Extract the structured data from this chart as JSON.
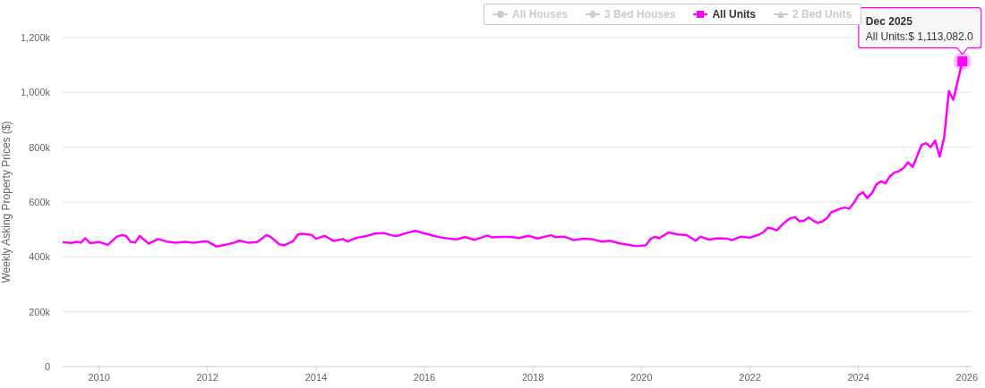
{
  "chart_data": {
    "type": "line",
    "ylabel": "Weekly Asking Property Prices ($)",
    "x": [
      "2009-05",
      "2009-07",
      "2009-08",
      "2009-09",
      "2009-10",
      "2009-11",
      "2010-01",
      "2010-03",
      "2010-05",
      "2010-06",
      "2010-07",
      "2010-08",
      "2010-09",
      "2010-10",
      "2010-12",
      "2011-02",
      "2011-04",
      "2011-06",
      "2011-08",
      "2011-10",
      "2011-12",
      "2012-01",
      "2012-03",
      "2012-05",
      "2012-07",
      "2012-08",
      "2012-10",
      "2012-12",
      "2013-02",
      "2013-03",
      "2013-05",
      "2013-06",
      "2013-08",
      "2013-09",
      "2013-10",
      "2013-12",
      "2014-01",
      "2014-03",
      "2014-05",
      "2014-07",
      "2014-08",
      "2014-10",
      "2014-12",
      "2015-02",
      "2015-04",
      "2015-06",
      "2015-07",
      "2015-09",
      "2015-11",
      "2016-01",
      "2016-03",
      "2016-05",
      "2016-08",
      "2016-10",
      "2016-12",
      "2017-03",
      "2017-04",
      "2017-06",
      "2017-08",
      "2017-10",
      "2017-12",
      "2018-02",
      "2018-05",
      "2018-06",
      "2018-08",
      "2018-10",
      "2018-12",
      "2019-02",
      "2019-04",
      "2019-06",
      "2019-08",
      "2019-10",
      "2019-12",
      "2020-02",
      "2020-03",
      "2020-04",
      "2020-05",
      "2020-07",
      "2020-09",
      "2020-11",
      "2021-01",
      "2021-02",
      "2021-04",
      "2021-06",
      "2021-08",
      "2021-09",
      "2021-11",
      "2022-01",
      "2022-03",
      "2022-04",
      "2022-05",
      "2022-06",
      "2022-07",
      "2022-08",
      "2022-09",
      "2022-10",
      "2022-11",
      "2022-12",
      "2023-01",
      "2023-02",
      "2023-03",
      "2023-04",
      "2023-05",
      "2023-06",
      "2023-07",
      "2023-08",
      "2023-09",
      "2023-10",
      "2023-11",
      "2023-12",
      "2024-01",
      "2024-02",
      "2024-03",
      "2024-04",
      "2024-05",
      "2024-06",
      "2024-07",
      "2024-08",
      "2024-09",
      "2024-10",
      "2024-11",
      "2024-12",
      "2025-01",
      "2025-02",
      "2025-03",
      "2025-04",
      "2025-05",
      "2025-06",
      "2025-07",
      "2025-08",
      "2025-09",
      "2025-10",
      "2025-11",
      "2025-12"
    ],
    "series": [
      {
        "name": "All Houses",
        "color": "#cccccc",
        "values": [
          null,
          null,
          null,
          null,
          null,
          null,
          null,
          null,
          null,
          null,
          null,
          null,
          null,
          null,
          null,
          null,
          null,
          null,
          null,
          null,
          null,
          null,
          null,
          null,
          null,
          null,
          null,
          null,
          null,
          null,
          null,
          null,
          null,
          null,
          null,
          null,
          null,
          null,
          null,
          null,
          null,
          null,
          null,
          null,
          null,
          null,
          null,
          null,
          null,
          null,
          null,
          null,
          null,
          null,
          null,
          null,
          null,
          null,
          null,
          null,
          null,
          null,
          null,
          null,
          null,
          null,
          null,
          null,
          null,
          null,
          null,
          null,
          null,
          null,
          null,
          null,
          null,
          null,
          null,
          null,
          null,
          null,
          null,
          null,
          null,
          null,
          null,
          null,
          null,
          null,
          null,
          null,
          null,
          null,
          null,
          null,
          null,
          null,
          null,
          null,
          null,
          null,
          null,
          null,
          null,
          null,
          null,
          null,
          null,
          null,
          null,
          null,
          null,
          null,
          null,
          null,
          null,
          null,
          null,
          null,
          null,
          null,
          null,
          null,
          null,
          null,
          null,
          null,
          null,
          null,
          null,
          null,
          null,
          null
        ]
      },
      {
        "name": "3 Bed Houses",
        "color": "#cccccc",
        "values": [
          null,
          null,
          null,
          null,
          null,
          null,
          null,
          null,
          null,
          null,
          null,
          null,
          null,
          null,
          null,
          null,
          null,
          null,
          null,
          null,
          null,
          null,
          null,
          null,
          null,
          null,
          null,
          null,
          null,
          null,
          null,
          null,
          null,
          null,
          null,
          null,
          null,
          null,
          null,
          null,
          null,
          null,
          null,
          null,
          null,
          null,
          null,
          null,
          null,
          null,
          null,
          null,
          null,
          null,
          null,
          null,
          null,
          null,
          null,
          null,
          null,
          null,
          null,
          null,
          null,
          null,
          null,
          null,
          null,
          null,
          null,
          null,
          null,
          null,
          null,
          null,
          null,
          null,
          null,
          null,
          null,
          null,
          null,
          null,
          null,
          null,
          null,
          null,
          null,
          null,
          null,
          null,
          null,
          null,
          null,
          null,
          null,
          null,
          null,
          null,
          null,
          null,
          null,
          null,
          null,
          null,
          null,
          null,
          null,
          null,
          null,
          null,
          null,
          null,
          null,
          null,
          null,
          null,
          null,
          null,
          null,
          null,
          null,
          null,
          null,
          null,
          null,
          null,
          null,
          null,
          null,
          null,
          null,
          null
        ]
      },
      {
        "name": "All Units",
        "color": "#ff00ff",
        "values": [
          453000,
          451000,
          455000,
          452000,
          468000,
          450000,
          454000,
          444000,
          474000,
          479000,
          477000,
          455000,
          452000,
          476000,
          448000,
          465000,
          456000,
          452000,
          455000,
          452000,
          456000,
          456000,
          438000,
          444000,
          452000,
          459000,
          452000,
          454000,
          479000,
          473000,
          445000,
          442000,
          458000,
          482000,
          484000,
          480000,
          466000,
          477000,
          458000,
          465000,
          456000,
          470000,
          475000,
          485000,
          487000,
          478000,
          476000,
          487000,
          495000,
          486000,
          477000,
          470000,
          464000,
          472000,
          462000,
          478000,
          471000,
          473000,
          473000,
          469000,
          477000,
          467000,
          479000,
          472000,
          474000,
          461000,
          466000,
          465000,
          456000,
          459000,
          450000,
          444000,
          439000,
          443000,
          465000,
          473000,
          468000,
          489000,
          482000,
          479000,
          459000,
          474000,
          463000,
          468000,
          466000,
          461000,
          474000,
          470000,
          481000,
          490000,
          506000,
          503000,
          497000,
          515000,
          530000,
          541000,
          545000,
          530000,
          532000,
          544000,
          533000,
          524000,
          528000,
          540000,
          562000,
          569000,
          576000,
          580000,
          576000,
          597000,
          625000,
          636000,
          614000,
          632000,
          664000,
          676000,
          668000,
          694000,
          708000,
          713000,
          725000,
          745000,
          728000,
          770000,
          808000,
          815000,
          800000,
          824000,
          766000,
          837000,
          1005000,
          973000,
          1044000,
          1113082
        ]
      },
      {
        "name": "2 Bed Units",
        "color": "#cccccc",
        "values": [
          null,
          null,
          null,
          null,
          null,
          null,
          null,
          null,
          null,
          null,
          null,
          null,
          null,
          null,
          null,
          null,
          null,
          null,
          null,
          null,
          null,
          null,
          null,
          null,
          null,
          null,
          null,
          null,
          null,
          null,
          null,
          null,
          null,
          null,
          null,
          null,
          null,
          null,
          null,
          null,
          null,
          null,
          null,
          null,
          null,
          null,
          null,
          null,
          null,
          null,
          null,
          null,
          null,
          null,
          null,
          null,
          null,
          null,
          null,
          null,
          null,
          null,
          null,
          null,
          null,
          null,
          null,
          null,
          null,
          null,
          null,
          null,
          null,
          null,
          null,
          null,
          null,
          null,
          null,
          null,
          null,
          null,
          null,
          null,
          null,
          null,
          null,
          null,
          null,
          null,
          null,
          null,
          null,
          null,
          null,
          null,
          null,
          null,
          null,
          null,
          null,
          null,
          null,
          null,
          null,
          null,
          null,
          null,
          null,
          null,
          null,
          null,
          null,
          null,
          null,
          null,
          null,
          null,
          null,
          null,
          null,
          null,
          null,
          null,
          null,
          null,
          null,
          null,
          null,
          null,
          null,
          null,
          null,
          null
        ]
      }
    ],
    "xlim": [
      "2009-05",
      "2026-02"
    ],
    "xticks": [
      "2010",
      "2012",
      "2014",
      "2016",
      "2018",
      "2020",
      "2022",
      "2024",
      "2026"
    ],
    "ylim": [
      0,
      1200000
    ],
    "yticks": [
      0,
      {
        "value": 200000,
        "label": "200k"
      },
      {
        "value": 400000,
        "label": "400k"
      },
      {
        "value": 600000,
        "label": "600k"
      },
      {
        "value": 800000,
        "label": "800k"
      },
      {
        "value": 1000000,
        "label": "1,000k"
      },
      {
        "value": 1200000,
        "label": "1,200k"
      }
    ],
    "grid": "y",
    "legend": "top right",
    "annotations": [
      {
        "text": "Dec 2025\nAll Units:$ 1,113,082.0",
        "x": "2025-12",
        "y": 1113082
      }
    ]
  }
}
